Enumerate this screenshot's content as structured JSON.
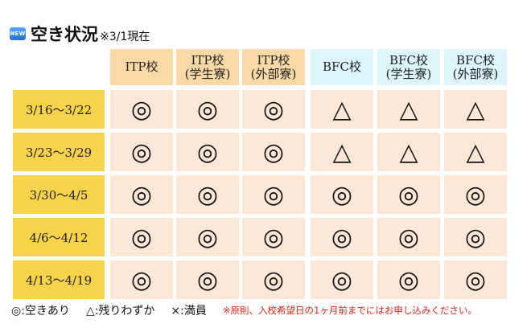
{
  "header": {
    "badge": "NEW",
    "title": "空き状況",
    "note": "※3/1現在"
  },
  "columns": [
    {
      "line1": "ITP校",
      "line2": ""
    },
    {
      "line1": "ITP校",
      "line2": "(学生寮)"
    },
    {
      "line1": "ITP校",
      "line2": "(外部寮)"
    },
    {
      "line1": "BFC校",
      "line2": ""
    },
    {
      "line1": "BFC校",
      "line2": "(学生寮)"
    },
    {
      "line1": "BFC校",
      "line2": "(外部寮)"
    }
  ],
  "rows": [
    {
      "label": "3/16～3/22",
      "cells": [
        "◎",
        "◎",
        "◎",
        "△",
        "△",
        "△"
      ]
    },
    {
      "label": "3/23～3/29",
      "cells": [
        "◎",
        "◎",
        "◎",
        "△",
        "△",
        "△"
      ]
    },
    {
      "label": "3/30～4/5",
      "cells": [
        "◎",
        "◎",
        "◎",
        "◎",
        "◎",
        "◎"
      ]
    },
    {
      "label": "4/6～4/12",
      "cells": [
        "◎",
        "◎",
        "◎",
        "◎",
        "◎",
        "◎"
      ]
    },
    {
      "label": "4/13～4/19",
      "cells": [
        "◎",
        "◎",
        "◎",
        "◎",
        "◎",
        "◎"
      ]
    }
  ],
  "legend": {
    "available": "◎:空きあり",
    "few": "△:残りわずか",
    "full": "×:満員",
    "note": "※原則、入校希望日の1ヶ月前までにはお申し込みください。"
  },
  "colors": {
    "itp_header": "#fad9a6",
    "bfc_header": "#dcf6fb",
    "row_label": "#f9d34a",
    "cell": "#fde8d7",
    "note_text": "#e0261b"
  }
}
